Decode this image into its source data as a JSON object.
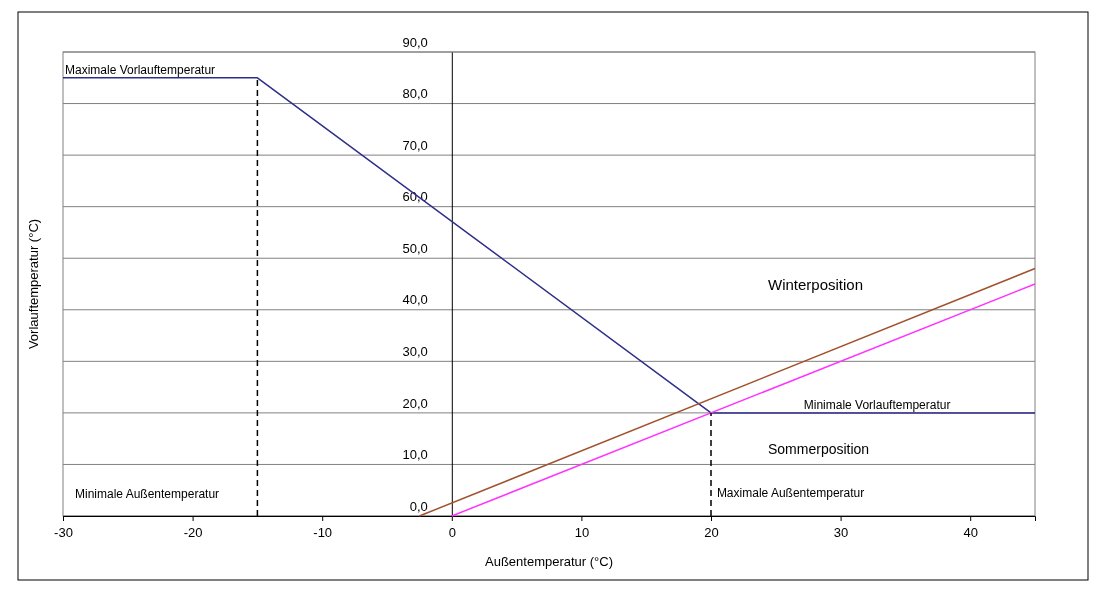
{
  "chart_data": {
    "type": "line",
    "xlabel": "Außentemperatur (°C)",
    "ylabel": "Vorlauftemperatur (°C)",
    "xlim": [
      -30,
      45
    ],
    "xticks": [
      -30,
      -20,
      -10,
      0,
      10,
      20,
      30,
      40
    ],
    "ylim": [
      0,
      90
    ],
    "yticks": [
      {
        "value": 0,
        "label": "0,0"
      },
      {
        "value": 10,
        "label": "10,0"
      },
      {
        "value": 20,
        "label": "20,0"
      },
      {
        "value": 30,
        "label": "30,0"
      },
      {
        "value": 40,
        "label": "40,0"
      },
      {
        "value": 50,
        "label": "50,0"
      },
      {
        "value": 60,
        "label": "60,0"
      },
      {
        "value": 70,
        "label": "70,0"
      },
      {
        "value": 80,
        "label": "80,0"
      },
      {
        "value": 90,
        "label": "90,0"
      }
    ],
    "grid": "y",
    "marker": "none",
    "series": [
      {
        "color": "#2e2e8a",
        "x": [
          -30,
          -15,
          20,
          45
        ],
        "values": [
          85,
          85,
          20,
          20
        ],
        "line_style": "solid"
      },
      {
        "color": "#a0522d",
        "x": [
          -2.5,
          45
        ],
        "values": [
          0,
          48
        ],
        "line_style": "solid"
      },
      {
        "color": "#ff33ff",
        "x": [
          0,
          45
        ],
        "values": [
          0,
          45
        ],
        "line_style": "solid"
      },
      {
        "color": "#000000",
        "x": [
          -15,
          -15
        ],
        "values": [
          0,
          85
        ],
        "line_style": "dashed"
      },
      {
        "color": "#000000",
        "x": [
          20,
          20
        ],
        "values": [
          0,
          20
        ],
        "line_style": "dashed"
      }
    ],
    "annotations": [
      {
        "text": "Maximale Vorlauftemperatur",
        "x": -30,
        "y": 85
      },
      {
        "text": "Minimale Vorlauftemperatur",
        "x": 27,
        "y": 20
      },
      "Winterposition",
      "Sommerposition",
      "Minimale Außentemperatur",
      {
        "text": "Maximale Außentemperatur",
        "x": 20.3,
        "y": 3
      }
    ]
  }
}
